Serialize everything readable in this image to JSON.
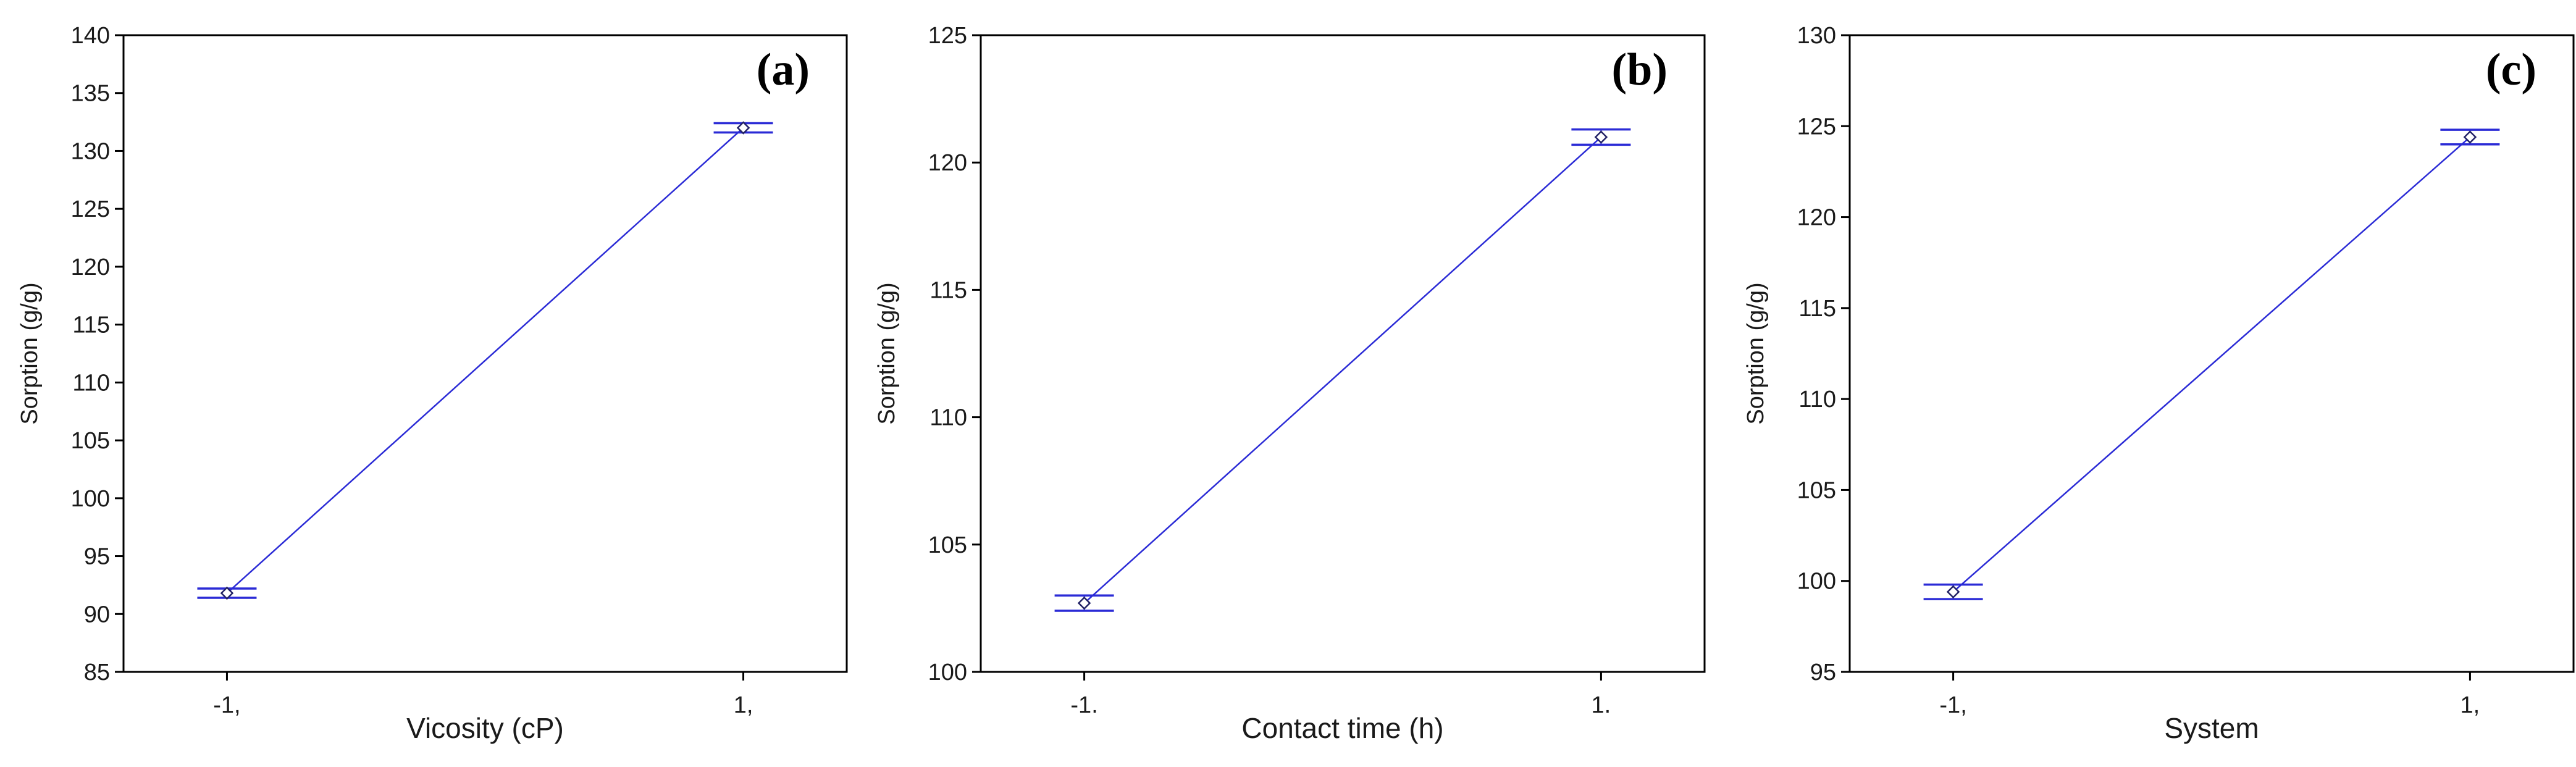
{
  "colors": {
    "series": "#2b2bd6",
    "axis": "#000000",
    "background": "#ffffff"
  },
  "chart_data": [
    {
      "type": "line",
      "panel_label": "(a)",
      "xlabel": "Vicosity (cP)",
      "ylabel": "Sorption (g/g)",
      "categories": [
        "-1,",
        "1,"
      ],
      "ylim": [
        85,
        140
      ],
      "yticks": [
        85,
        90,
        95,
        100,
        105,
        110,
        115,
        120,
        125,
        130,
        135,
        140
      ],
      "series": [
        {
          "values": [
            91.8,
            132.0
          ],
          "error_low": [
            91.4,
            131.6
          ],
          "error_high": [
            92.2,
            132.4
          ]
        }
      ],
      "grid": false,
      "legend": "none"
    },
    {
      "type": "line",
      "panel_label": "(b)",
      "xlabel": "Contact time (h)",
      "ylabel": "Sorption (g/g)",
      "categories": [
        "-1.",
        "1."
      ],
      "ylim": [
        100,
        125
      ],
      "yticks": [
        100,
        105,
        110,
        115,
        120,
        125
      ],
      "series": [
        {
          "values": [
            102.7,
            121.0
          ],
          "error_low": [
            102.4,
            120.7
          ],
          "error_high": [
            103.0,
            121.3
          ]
        }
      ],
      "grid": false,
      "legend": "none"
    },
    {
      "type": "line",
      "panel_label": "(c)",
      "xlabel": "System",
      "ylabel": "Sorption (g/g)",
      "categories": [
        "-1,",
        "1,"
      ],
      "ylim": [
        95,
        130
      ],
      "yticks": [
        95,
        100,
        105,
        110,
        115,
        120,
        125,
        130
      ],
      "series": [
        {
          "values": [
            99.4,
            124.4
          ],
          "error_low": [
            99.0,
            124.0
          ],
          "error_high": [
            99.8,
            124.8
          ]
        }
      ],
      "grid": false,
      "legend": "none"
    }
  ]
}
